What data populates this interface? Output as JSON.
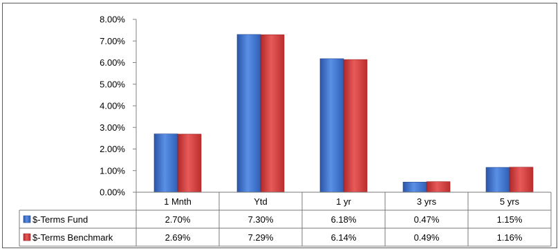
{
  "chart_data": {
    "type": "bar",
    "title": "",
    "xlabel": "",
    "ylabel": "",
    "categories": [
      "1 Mnth",
      "Ytd",
      "1 yr",
      "3 yrs",
      "5 yrs"
    ],
    "ylim": [
      0,
      8
    ],
    "y_ticks": [
      "0.00%",
      "1.00%",
      "2.00%",
      "3.00%",
      "4.00%",
      "5.00%",
      "6.00%",
      "7.00%",
      "8.00%"
    ],
    "grid": false,
    "legend": "data-table",
    "series": [
      {
        "name": "$-Terms Fund",
        "color": "#3a6fc9",
        "values": [
          2.7,
          7.3,
          6.18,
          0.47,
          1.15
        ],
        "labels": [
          "2.70%",
          "7.30%",
          "6.18%",
          "0.47%",
          "1.15%"
        ]
      },
      {
        "name": "$-Terms Benchmark",
        "color": "#d23a3a",
        "values": [
          2.69,
          7.29,
          6.14,
          0.49,
          1.16
        ],
        "labels": [
          "2.69%",
          "7.29%",
          "6.14%",
          "0.49%",
          "1.16%"
        ]
      }
    ]
  }
}
